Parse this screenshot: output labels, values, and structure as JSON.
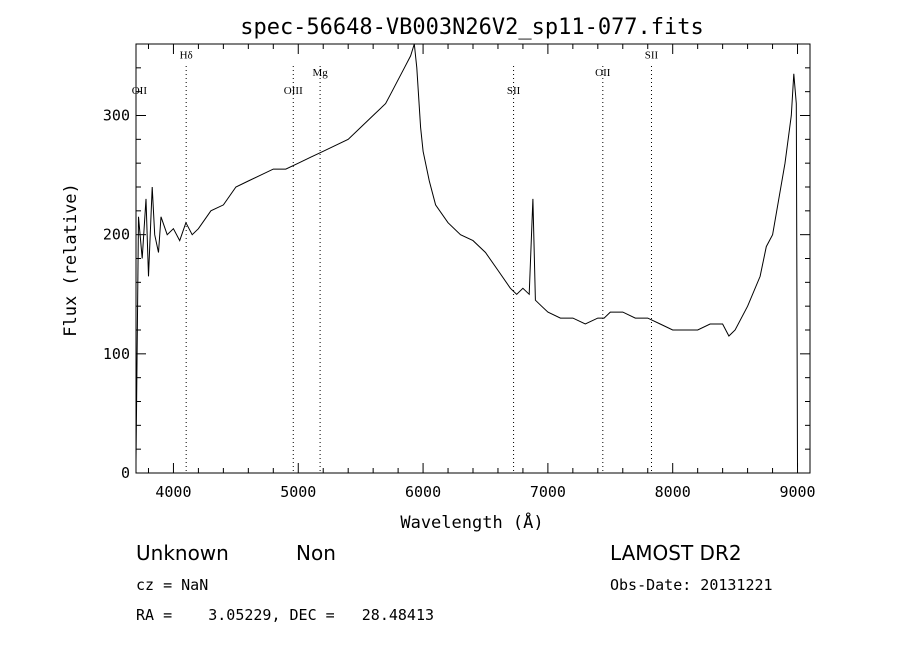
{
  "chart_data": {
    "type": "line",
    "title": "spec-56648-VB003N26V2_sp11-077.fits",
    "xlabel": "Wavelength (Å)",
    "ylabel": "Flux (relative)",
    "xlim": [
      3700,
      9100
    ],
    "ylim": [
      0,
      360
    ],
    "x_ticks": [
      4000,
      5000,
      6000,
      7000,
      8000,
      9000
    ],
    "y_ticks": [
      0,
      100,
      200,
      300
    ],
    "grid": false,
    "series": [
      {
        "x": [
          3700,
          3720,
          3750,
          3780,
          3800,
          3830,
          3850,
          3880,
          3900,
          3950,
          4000,
          4050,
          4100,
          4150,
          4200,
          4300,
          4400,
          4500,
          4600,
          4700,
          4800,
          4900,
          5000,
          5100,
          5200,
          5300,
          5400,
          5500,
          5600,
          5700,
          5750,
          5800,
          5850,
          5900,
          5930,
          5950,
          5980,
          6000,
          6050,
          6100,
          6200,
          6300,
          6400,
          6500,
          6600,
          6700,
          6750,
          6800,
          6850,
          6880,
          6900,
          6950,
          7000,
          7100,
          7200,
          7300,
          7400,
          7450,
          7500,
          7600,
          7700,
          7800,
          7900,
          8000,
          8100,
          8200,
          8300,
          8400,
          8450,
          8500,
          8600,
          8700,
          8750,
          8800,
          8850,
          8900,
          8950,
          8970,
          8990,
          9000
        ],
        "y": [
          10,
          215,
          180,
          230,
          165,
          240,
          200,
          185,
          215,
          200,
          205,
          195,
          210,
          200,
          205,
          220,
          225,
          240,
          245,
          250,
          255,
          255,
          260,
          265,
          270,
          275,
          280,
          290,
          300,
          310,
          320,
          330,
          340,
          350,
          360,
          340,
          290,
          270,
          245,
          225,
          210,
          200,
          195,
          185,
          170,
          155,
          150,
          155,
          150,
          230,
          145,
          140,
          135,
          130,
          130,
          125,
          130,
          130,
          135,
          135,
          130,
          130,
          125,
          120,
          120,
          120,
          125,
          125,
          115,
          120,
          140,
          165,
          190,
          200,
          230,
          260,
          300,
          335,
          310,
          5
        ]
      }
    ],
    "lines": [
      {
        "label": "OII",
        "x": 3727,
        "label_y": 318,
        "line": false
      },
      {
        "label": "Hδ",
        "x": 4102,
        "label_y": 348
      },
      {
        "label": "OIII",
        "x": 4960,
        "label_y": 318
      },
      {
        "label": "Mg",
        "x": 5175,
        "label_y": 333
      },
      {
        "label": "SII",
        "x": 6725,
        "label_y": 318
      },
      {
        "label": "OII",
        "x": 7440,
        "label_y": 333
      },
      {
        "label": "SII",
        "x": 7830,
        "label_y": 348
      }
    ]
  },
  "info": {
    "object_class": "Unknown",
    "object_subclass": "Non",
    "survey": "LAMOST DR2",
    "redshift": "cz = NaN",
    "obs_date": "Obs-Date: 20131221",
    "coords": "RA =    3.05229, DEC =   28.48413"
  }
}
